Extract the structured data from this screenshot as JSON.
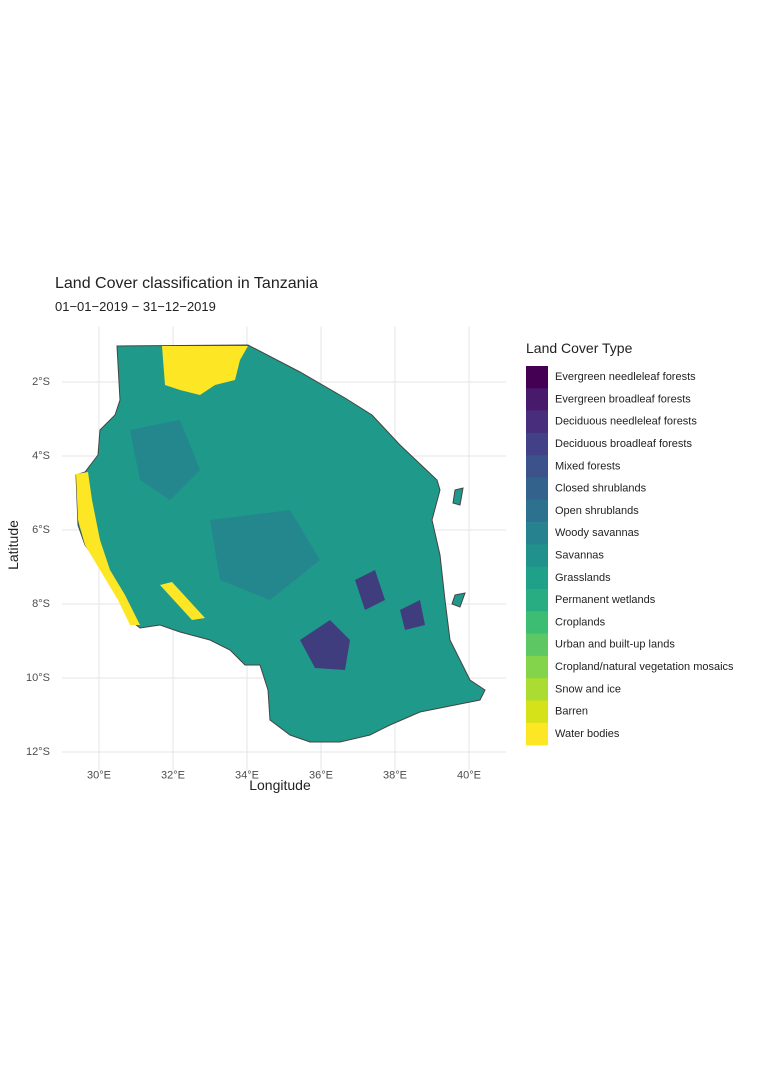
{
  "chart_data": {
    "type": "map",
    "title": "Land Cover classification in Tanzania",
    "subtitle": "01−01−2019 − 31−12−2019",
    "x_label": "Longitude",
    "y_label": "Latitude",
    "xlim": [
      29,
      41
    ],
    "ylim": [
      -12.5,
      -0.5
    ],
    "xticks": [
      {
        "value": 30,
        "label": "30°E"
      },
      {
        "value": 32,
        "label": "32°E"
      },
      {
        "value": 34,
        "label": "34°E"
      },
      {
        "value": 36,
        "label": "36°E"
      },
      {
        "value": 38,
        "label": "38°E"
      },
      {
        "value": 40,
        "label": "40°E"
      }
    ],
    "yticks": [
      {
        "value": -2,
        "label": "2°S"
      },
      {
        "value": -4,
        "label": "4°S"
      },
      {
        "value": -6,
        "label": "6°S"
      },
      {
        "value": -8,
        "label": "8°S"
      },
      {
        "value": -10,
        "label": "10°S"
      },
      {
        "value": -12,
        "label": "12°S"
      }
    ],
    "grid": true,
    "legend_title": "Land Cover Type",
    "legend": [
      {
        "name": "Evergreen needleleaf forests",
        "color": "#440154"
      },
      {
        "name": "Evergreen broadleaf forests",
        "color": "#481A6C"
      },
      {
        "name": "Deciduous needleleaf forests",
        "color": "#472D7B"
      },
      {
        "name": "Deciduous broadleaf forests",
        "color": "#424086"
      },
      {
        "name": "Mixed forests",
        "color": "#3B528B"
      },
      {
        "name": "Closed shrublands",
        "color": "#33638D"
      },
      {
        "name": "Open shrublands",
        "color": "#2C728E"
      },
      {
        "name": "Woody savannas",
        "color": "#26828E"
      },
      {
        "name": "Savannas",
        "color": "#21918C"
      },
      {
        "name": "Grasslands",
        "color": "#1FA088"
      },
      {
        "name": "Permanent wetlands",
        "color": "#27AD81"
      },
      {
        "name": "Croplands",
        "color": "#3DBC74"
      },
      {
        "name": "Urban and built-up lands",
        "color": "#5DC863"
      },
      {
        "name": "Cropland/natural vegetation mosaics",
        "color": "#84D44B"
      },
      {
        "name": "Snow and ice",
        "color": "#AADC32"
      },
      {
        "name": "Barren",
        "color": "#D5E21A"
      },
      {
        "name": "Water bodies",
        "color": "#FDE725"
      }
    ]
  }
}
